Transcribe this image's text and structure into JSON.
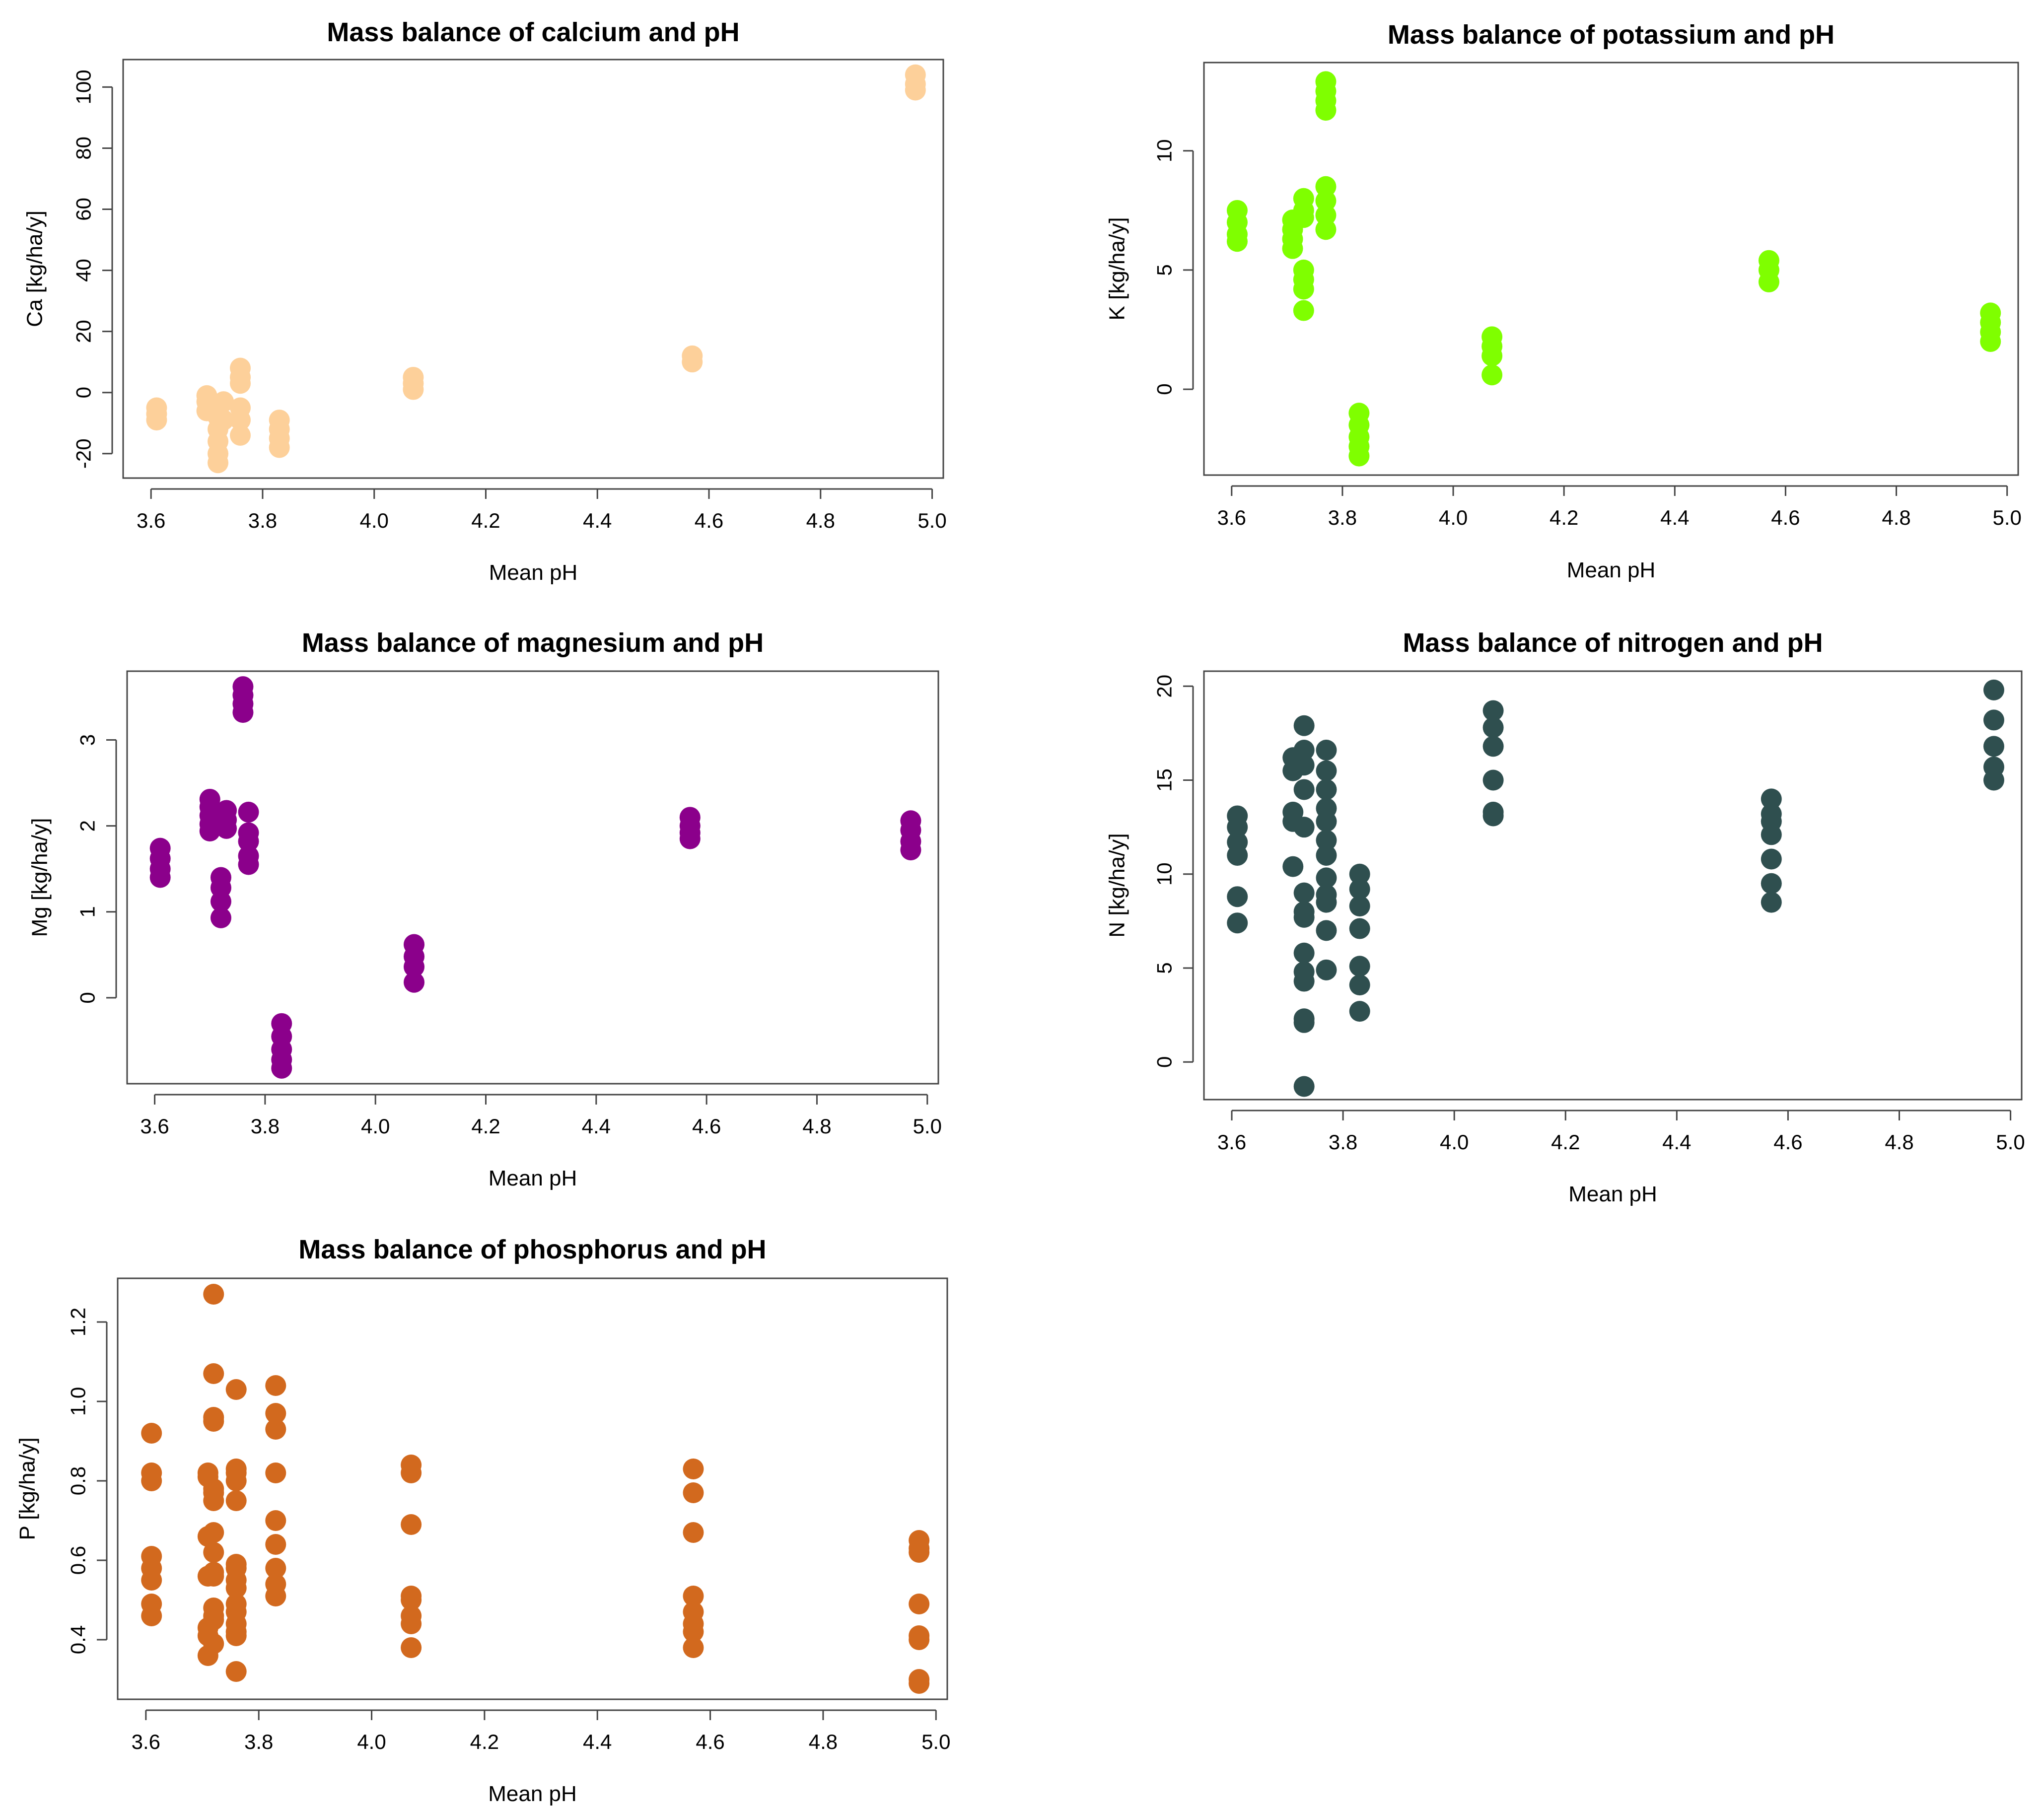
{
  "chart_data": [
    {
      "id": "calcium",
      "type": "scatter",
      "title": "Mass balance of calcium and pH",
      "xlabel": "Mean pH",
      "ylabel": "Ca [kg/ha/y]",
      "xlim": [
        3.55,
        5.02
      ],
      "ylim": [
        -28,
        109
      ],
      "xticks": [
        "3.6",
        "3.8",
        "4.0",
        "4.2",
        "4.4",
        "4.6",
        "4.8",
        "5.0"
      ],
      "yticks": [
        "-20",
        "0",
        "20",
        "40",
        "60",
        "80",
        "100"
      ],
      "color": "#FDD09A",
      "points": [
        [
          3.61,
          -5
        ],
        [
          3.61,
          -7
        ],
        [
          3.61,
          -9
        ],
        [
          3.7,
          -1
        ],
        [
          3.7,
          -3
        ],
        [
          3.7,
          -6
        ],
        [
          3.71,
          -4
        ],
        [
          3.72,
          -8
        ],
        [
          3.72,
          -12
        ],
        [
          3.72,
          -16
        ],
        [
          3.72,
          -20
        ],
        [
          3.72,
          -23
        ],
        [
          3.73,
          -3
        ],
        [
          3.73,
          -9
        ],
        [
          3.76,
          8
        ],
        [
          3.76,
          5
        ],
        [
          3.76,
          3
        ],
        [
          3.76,
          -5
        ],
        [
          3.76,
          -9
        ],
        [
          3.76,
          -14
        ],
        [
          3.83,
          -9
        ],
        [
          3.83,
          -12
        ],
        [
          3.83,
          -15
        ],
        [
          3.83,
          -18
        ],
        [
          4.07,
          5
        ],
        [
          4.07,
          3
        ],
        [
          4.07,
          1
        ],
        [
          4.57,
          12
        ],
        [
          4.57,
          10
        ],
        [
          4.97,
          104
        ],
        [
          4.97,
          101
        ],
        [
          4.97,
          99
        ]
      ]
    },
    {
      "id": "potassium",
      "type": "scatter",
      "title": "Mass balance of potassium and pH",
      "xlabel": "Mean pH",
      "ylabel": "K [kg/ha/y]",
      "xlim": [
        3.55,
        5.02
      ],
      "ylim": [
        -3.6,
        13.7
      ],
      "xticks": [
        "3.6",
        "3.8",
        "4.0",
        "4.2",
        "4.4",
        "4.6",
        "4.8",
        "5.0"
      ],
      "yticks": [
        "0",
        "5",
        "10"
      ],
      "color": "#7FFF00",
      "points": [
        [
          3.61,
          7.5
        ],
        [
          3.61,
          7.0
        ],
        [
          3.61,
          6.5
        ],
        [
          3.61,
          6.2
        ],
        [
          3.71,
          7.1
        ],
        [
          3.71,
          6.7
        ],
        [
          3.71,
          6.3
        ],
        [
          3.71,
          5.9
        ],
        [
          3.73,
          8.0
        ],
        [
          3.73,
          7.5
        ],
        [
          3.73,
          7.2
        ],
        [
          3.73,
          5.0
        ],
        [
          3.73,
          4.6
        ],
        [
          3.73,
          4.2
        ],
        [
          3.73,
          3.3
        ],
        [
          3.77,
          12.9
        ],
        [
          3.77,
          12.5
        ],
        [
          3.77,
          12.1
        ],
        [
          3.77,
          11.7
        ],
        [
          3.77,
          8.5
        ],
        [
          3.77,
          7.9
        ],
        [
          3.77,
          7.3
        ],
        [
          3.77,
          6.7
        ],
        [
          3.83,
          -1.0
        ],
        [
          3.83,
          -1.5
        ],
        [
          3.83,
          -2.0
        ],
        [
          3.83,
          -2.4
        ],
        [
          3.83,
          -2.8
        ],
        [
          4.07,
          2.2
        ],
        [
          4.07,
          1.8
        ],
        [
          4.07,
          1.4
        ],
        [
          4.07,
          0.6
        ],
        [
          4.57,
          5.4
        ],
        [
          4.57,
          5.0
        ],
        [
          4.57,
          4.5
        ],
        [
          4.97,
          3.2
        ],
        [
          4.97,
          2.8
        ],
        [
          4.97,
          2.4
        ],
        [
          4.97,
          2.0
        ]
      ]
    },
    {
      "id": "magnesium",
      "type": "scatter",
      "title": "Mass balance of magnesium and pH",
      "xlabel": "Mean pH",
      "ylabel": "Mg [kg/ha/y]",
      "xlim": [
        3.55,
        5.02
      ],
      "ylim": [
        -1.0,
        3.8
      ],
      "xticks": [
        "3.6",
        "3.8",
        "4.0",
        "4.2",
        "4.4",
        "4.6",
        "4.8",
        "5.0"
      ],
      "yticks": [
        "0",
        "1",
        "2",
        "3"
      ],
      "color": "#8B008B",
      "points": [
        [
          3.61,
          1.74
        ],
        [
          3.61,
          1.62
        ],
        [
          3.61,
          1.5
        ],
        [
          3.61,
          1.4
        ],
        [
          3.7,
          2.31
        ],
        [
          3.7,
          2.22
        ],
        [
          3.7,
          2.12
        ],
        [
          3.7,
          2.02
        ],
        [
          3.7,
          1.94
        ],
        [
          3.72,
          1.4
        ],
        [
          3.72,
          1.28
        ],
        [
          3.72,
          1.12
        ],
        [
          3.72,
          0.93
        ],
        [
          3.73,
          2.18
        ],
        [
          3.73,
          2.07
        ],
        [
          3.73,
          1.97
        ],
        [
          3.76,
          3.62
        ],
        [
          3.76,
          3.52
        ],
        [
          3.76,
          3.42
        ],
        [
          3.76,
          3.32
        ],
        [
          3.77,
          2.16
        ],
        [
          3.77,
          1.92
        ],
        [
          3.77,
          1.82
        ],
        [
          3.77,
          1.65
        ],
        [
          3.77,
          1.55
        ],
        [
          3.83,
          -0.3
        ],
        [
          3.83,
          -0.45
        ],
        [
          3.83,
          -0.6
        ],
        [
          3.83,
          -0.72
        ],
        [
          3.83,
          -0.82
        ],
        [
          4.07,
          0.62
        ],
        [
          4.07,
          0.48
        ],
        [
          4.07,
          0.36
        ],
        [
          4.07,
          0.18
        ],
        [
          4.57,
          2.1
        ],
        [
          4.57,
          2.0
        ],
        [
          4.57,
          1.92
        ],
        [
          4.57,
          1.85
        ],
        [
          4.97,
          2.06
        ],
        [
          4.97,
          1.95
        ],
        [
          4.97,
          1.82
        ],
        [
          4.97,
          1.72
        ]
      ]
    },
    {
      "id": "nitrogen",
      "type": "scatter",
      "title": "Mass balance of nitrogen and pH",
      "xlabel": "Mean pH",
      "ylabel": "N [kg/ha/y]",
      "xlim": [
        3.55,
        5.02
      ],
      "ylim": [
        -2.0,
        20.8
      ],
      "xticks": [
        "3.6",
        "3.8",
        "4.0",
        "4.2",
        "4.4",
        "4.6",
        "4.8",
        "5.0"
      ],
      "yticks": [
        "0",
        "5",
        "10",
        "15",
        "20"
      ],
      "color": "#2F4F4F",
      "points": [
        [
          3.61,
          13.1
        ],
        [
          3.61,
          12.5
        ],
        [
          3.61,
          11.7
        ],
        [
          3.61,
          11.0
        ],
        [
          3.61,
          8.8
        ],
        [
          3.61,
          7.4
        ],
        [
          3.71,
          16.2
        ],
        [
          3.71,
          15.5
        ],
        [
          3.71,
          13.3
        ],
        [
          3.71,
          12.8
        ],
        [
          3.71,
          10.4
        ],
        [
          3.73,
          17.9
        ],
        [
          3.73,
          16.6
        ],
        [
          3.73,
          15.8
        ],
        [
          3.73,
          14.5
        ],
        [
          3.73,
          12.5
        ],
        [
          3.73,
          9.0
        ],
        [
          3.73,
          8.0
        ],
        [
          3.73,
          7.7
        ],
        [
          3.73,
          5.8
        ],
        [
          3.73,
          4.8
        ],
        [
          3.73,
          4.3
        ],
        [
          3.73,
          2.3
        ],
        [
          3.73,
          2.1
        ],
        [
          3.73,
          -1.3
        ],
        [
          3.77,
          16.6
        ],
        [
          3.77,
          15.5
        ],
        [
          3.77,
          14.5
        ],
        [
          3.77,
          13.5
        ],
        [
          3.77,
          12.8
        ],
        [
          3.77,
          11.8
        ],
        [
          3.77,
          11.0
        ],
        [
          3.77,
          9.8
        ],
        [
          3.77,
          8.9
        ],
        [
          3.77,
          8.5
        ],
        [
          3.77,
          7.0
        ],
        [
          3.77,
          4.9
        ],
        [
          3.83,
          10.0
        ],
        [
          3.83,
          9.2
        ],
        [
          3.83,
          8.3
        ],
        [
          3.83,
          7.1
        ],
        [
          3.83,
          5.1
        ],
        [
          3.83,
          4.1
        ],
        [
          3.83,
          2.7
        ],
        [
          4.07,
          18.7
        ],
        [
          4.07,
          17.8
        ],
        [
          4.07,
          16.8
        ],
        [
          4.07,
          15.0
        ],
        [
          4.07,
          13.3
        ],
        [
          4.07,
          13.1
        ],
        [
          4.57,
          14.0
        ],
        [
          4.57,
          13.2
        ],
        [
          4.57,
          12.8
        ],
        [
          4.57,
          12.1
        ],
        [
          4.57,
          10.8
        ],
        [
          4.57,
          9.5
        ],
        [
          4.57,
          8.5
        ],
        [
          4.97,
          19.8
        ],
        [
          4.97,
          18.2
        ],
        [
          4.97,
          16.8
        ],
        [
          4.97,
          15.7
        ],
        [
          4.97,
          15.0
        ]
      ]
    },
    {
      "id": "phosphorus",
      "type": "scatter",
      "title": "Mass balance of phosphorus and pH",
      "xlabel": "Mean pH",
      "ylabel": "P [kg/ha/y]",
      "xlim": [
        3.55,
        5.02
      ],
      "ylim": [
        0.25,
        1.31
      ],
      "xticks": [
        "3.6",
        "3.8",
        "4.0",
        "4.2",
        "4.4",
        "4.6",
        "4.8",
        "5.0"
      ],
      "yticks": [
        "0.4",
        "0.6",
        "0.8",
        "1.0",
        "1.2"
      ],
      "color": "#D2691E",
      "points": [
        [
          3.61,
          0.92
        ],
        [
          3.61,
          0.82
        ],
        [
          3.61,
          0.8
        ],
        [
          3.61,
          0.61
        ],
        [
          3.61,
          0.58
        ],
        [
          3.61,
          0.55
        ],
        [
          3.61,
          0.49
        ],
        [
          3.61,
          0.46
        ],
        [
          3.71,
          0.82
        ],
        [
          3.71,
          0.81
        ],
        [
          3.71,
          0.66
        ],
        [
          3.71,
          0.56
        ],
        [
          3.71,
          0.43
        ],
        [
          3.71,
          0.41
        ],
        [
          3.71,
          0.36
        ],
        [
          3.72,
          1.27
        ],
        [
          3.72,
          1.07
        ],
        [
          3.72,
          0.96
        ],
        [
          3.72,
          0.95
        ],
        [
          3.72,
          0.78
        ],
        [
          3.72,
          0.77
        ],
        [
          3.72,
          0.75
        ],
        [
          3.72,
          0.67
        ],
        [
          3.72,
          0.62
        ],
        [
          3.72,
          0.57
        ],
        [
          3.72,
          0.56
        ],
        [
          3.72,
          0.48
        ],
        [
          3.72,
          0.46
        ],
        [
          3.72,
          0.45
        ],
        [
          3.72,
          0.39
        ],
        [
          3.76,
          1.03
        ],
        [
          3.76,
          0.83
        ],
        [
          3.76,
          0.82
        ],
        [
          3.76,
          0.8
        ],
        [
          3.76,
          0.75
        ],
        [
          3.76,
          0.59
        ],
        [
          3.76,
          0.58
        ],
        [
          3.76,
          0.55
        ],
        [
          3.76,
          0.53
        ],
        [
          3.76,
          0.49
        ],
        [
          3.76,
          0.47
        ],
        [
          3.76,
          0.44
        ],
        [
          3.76,
          0.42
        ],
        [
          3.76,
          0.41
        ],
        [
          3.76,
          0.32
        ],
        [
          3.83,
          1.04
        ],
        [
          3.83,
          0.97
        ],
        [
          3.83,
          0.93
        ],
        [
          3.83,
          0.82
        ],
        [
          3.83,
          0.7
        ],
        [
          3.83,
          0.64
        ],
        [
          3.83,
          0.58
        ],
        [
          3.83,
          0.54
        ],
        [
          3.83,
          0.51
        ],
        [
          4.07,
          0.84
        ],
        [
          4.07,
          0.82
        ],
        [
          4.07,
          0.69
        ],
        [
          4.07,
          0.51
        ],
        [
          4.07,
          0.5
        ],
        [
          4.07,
          0.46
        ],
        [
          4.07,
          0.44
        ],
        [
          4.07,
          0.38
        ],
        [
          4.57,
          0.83
        ],
        [
          4.57,
          0.77
        ],
        [
          4.57,
          0.67
        ],
        [
          4.57,
          0.51
        ],
        [
          4.57,
          0.47
        ],
        [
          4.57,
          0.44
        ],
        [
          4.57,
          0.42
        ],
        [
          4.57,
          0.38
        ],
        [
          4.97,
          0.65
        ],
        [
          4.97,
          0.63
        ],
        [
          4.97,
          0.62
        ],
        [
          4.97,
          0.49
        ],
        [
          4.97,
          0.41
        ],
        [
          4.97,
          0.4
        ],
        [
          4.97,
          0.3
        ],
        [
          4.97,
          0.29
        ]
      ]
    }
  ]
}
